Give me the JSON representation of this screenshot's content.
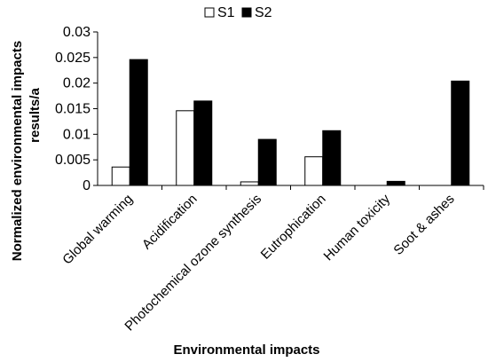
{
  "chart_data": {
    "type": "bar",
    "title": "",
    "xlabel": "Environmental impacts",
    "ylabel_lines": [
      "Normalized environmental impacts",
      "results/a"
    ],
    "ylim": [
      0,
      0.03
    ],
    "yticks": [
      "0",
      "0.005",
      "0.01",
      "0.015",
      "0.02",
      "0.025",
      "0.03"
    ],
    "categories": [
      "Global warming",
      "Acidification",
      "Photochemical ozone synthesis",
      "Eutrophication",
      "Human toxicity",
      "Soot & ashes"
    ],
    "series": [
      {
        "name": "S1",
        "color": "#ffffff",
        "values": [
          0.0036,
          0.0146,
          0.0007,
          0.0056,
          0.0,
          0.0
        ]
      },
      {
        "name": "S2",
        "color": "#000000",
        "values": [
          0.0246,
          0.0165,
          0.009,
          0.0107,
          0.0008,
          0.0204
        ]
      }
    ],
    "grid": false,
    "legend_position": "top-center"
  }
}
